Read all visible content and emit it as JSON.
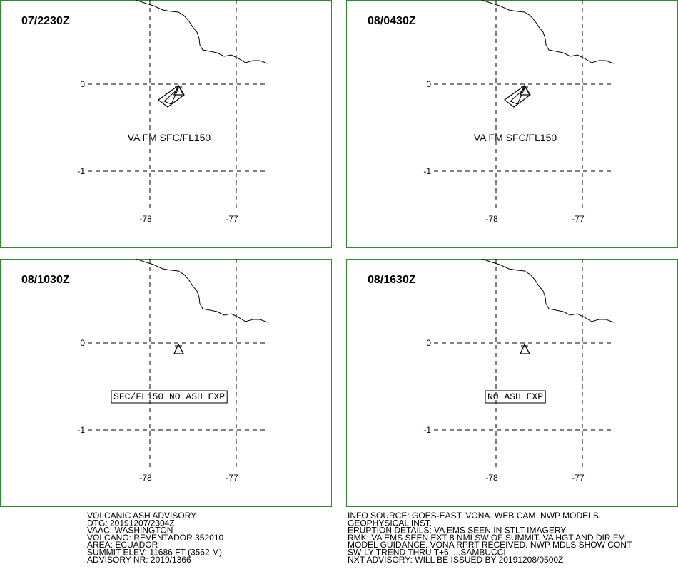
{
  "panels": [
    {
      "time": "07/2230Z",
      "annotation": "VA FM SFC/FL150",
      "boxed": false
    },
    {
      "time": "08/0430Z",
      "annotation": "VA FM SFC/FL150",
      "boxed": false
    },
    {
      "time": "08/1030Z",
      "annotation": "SFC/FL150 NO ASH EXP",
      "boxed": true
    },
    {
      "time": "08/1630Z",
      "annotation": "NO ASH EXP",
      "boxed": true
    }
  ],
  "axes": {
    "lat_labels": [
      "0",
      "-1"
    ],
    "lon_labels": [
      "-78",
      "-77"
    ]
  },
  "advisory_left": [
    "VOLCANIC ASH ADVISORY",
    "DTG: 20191207/2304Z",
    "VAAC: WASHINGTON",
    "VOLCANO: REVENTADOR 352010",
    "AREA: ECUADOR",
    "SUMMIT ELEV: 11686 FT (3562 M)",
    "ADVISORY NR: 2019/1366"
  ],
  "advisory_right": [
    "INFO SOURCE: GOES-EAST. VONA. WEB CAM. NWP MODELS.",
    "GEOPHYSICAL INST.",
    "ERUPTION DETAILS: VA EMS SEEN IN STLT IMAGERY",
    "RMK: VA EMS SEEN EXT 8 NMI SW OF SUMMIT. VA HGT AND DIR FM",
    "MODEL GUIDANCE. VONA RPRT RECEIVED. NWP MDLS SHOW CONT",
    "SW-LY TREND THRU T+6. ...SAMBUCCI",
    "NXT ADVISORY: WILL BE ISSUED BY 20191208/0500Z"
  ]
}
